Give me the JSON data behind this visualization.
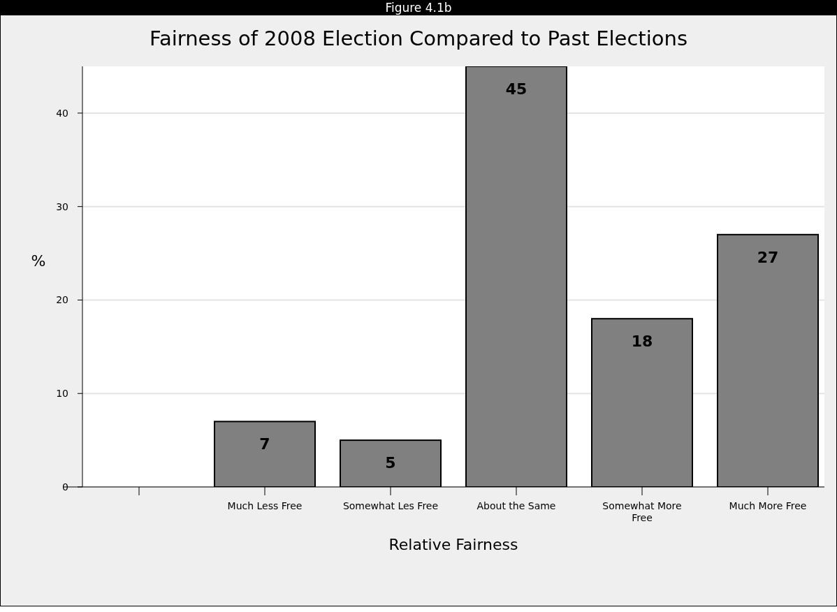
{
  "chart_data": {
    "type": "bar",
    "title": "Fairness of 2008 Election Compared to Past Elections",
    "xlabel": "Relative Fairness",
    "ylabel": "%",
    "annotations": [
      "Figure 4.1b"
    ],
    "categories": [
      null,
      "Much Less Free",
      "Somewhat Les Free",
      "About the Same",
      "Somewhat More Free",
      "Much More Free"
    ],
    "values": [
      null,
      7,
      5,
      45,
      18,
      27
    ],
    "color": "#808080",
    "ylim": [
      0,
      45
    ],
    "yticks": [
      0,
      10,
      20,
      30,
      40
    ],
    "grid": "y",
    "data_labels": true
  }
}
